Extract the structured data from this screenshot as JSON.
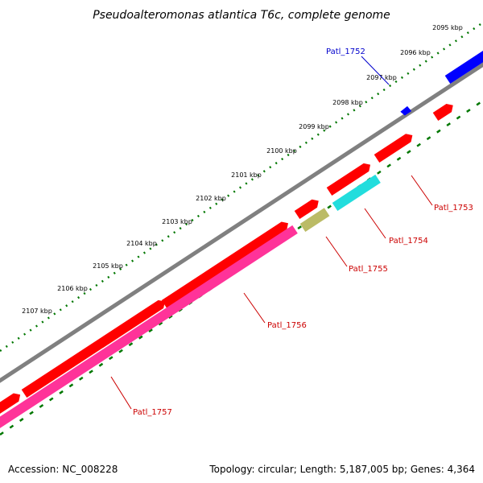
{
  "title": "Pseudoalteromonas atlantica T6c, complete genome",
  "footer": {
    "accession": "Accession: NC_008228",
    "summary": "Topology: circular; Length: 5,187,005 bp; Genes: 4,364"
  },
  "tick_labels": [
    "2095 kbp",
    "2096 kbp",
    "2097 kbp",
    "2098 kbp",
    "2099 kbp",
    "2100 kbp",
    "2101 kbp",
    "2102 kbp",
    "2103 kbp",
    "2104 kbp",
    "2105 kbp",
    "2106 kbp",
    "2107 kbp"
  ],
  "colors": {
    "backbone": "#808080",
    "forward_cds": "#ff0000",
    "reverse_cds": "#ff0000",
    "other_blue": "#0000ff",
    "pink": "#ff3399",
    "cyan": "#22dddd",
    "olive": "#bbbb66",
    "tick_green": "#007700",
    "label_red": "#cc0000",
    "label_blue": "#0000cc"
  },
  "gene_labels": [
    {
      "id": "patl_1752",
      "text": "Patl_1752",
      "color": "#0000cc"
    },
    {
      "id": "patl_1753",
      "text": "Patl_1753",
      "color": "#cc0000"
    },
    {
      "id": "patl_1754",
      "text": "Patl_1754",
      "color": "#cc0000"
    },
    {
      "id": "patl_1755",
      "text": "Patl_1755",
      "color": "#cc0000"
    },
    {
      "id": "patl_1756",
      "text": "Patl_1756",
      "color": "#cc0000"
    },
    {
      "id": "patl_1757",
      "text": "Patl_1757",
      "color": "#cc0000"
    }
  ]
}
